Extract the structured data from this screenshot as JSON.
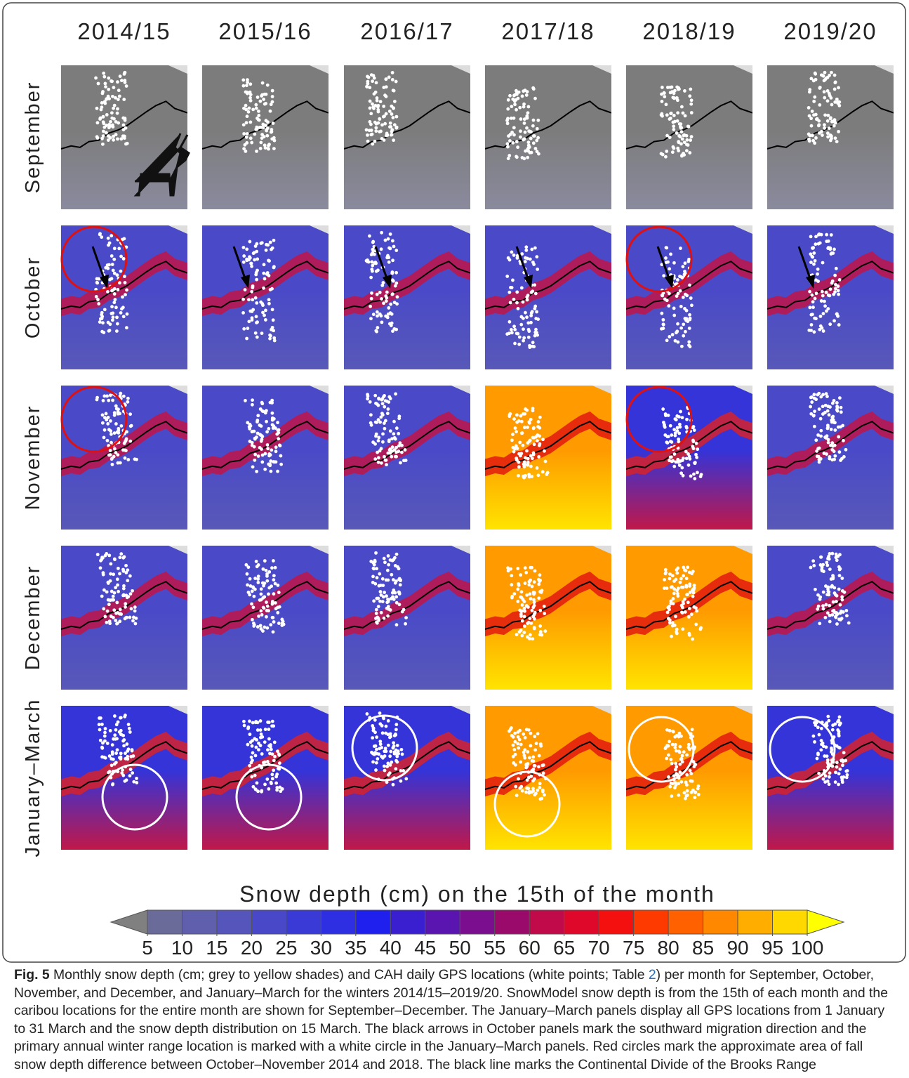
{
  "columns": [
    "2014/15",
    "2015/16",
    "2016/17",
    "2017/18",
    "2018/19",
    "2019/20"
  ],
  "rows": [
    "September",
    "October",
    "November",
    "December",
    "January–March"
  ],
  "colorbar": {
    "title": "Snow depth (cm) on the 15th of the month",
    "ticks": [
      5,
      10,
      15,
      20,
      25,
      30,
      35,
      40,
      45,
      50,
      55,
      60,
      65,
      70,
      75,
      80,
      85,
      90,
      95,
      100
    ],
    "under_color": "#808080",
    "over_color": "#ffff00",
    "colors": [
      "#6b6b9a",
      "#5f5fae",
      "#5555bb",
      "#4848c8",
      "#3a3ad6",
      "#2e2ee2",
      "#1f1fee",
      "#3a1fd0",
      "#5a15b0",
      "#7a0e8e",
      "#9a0a6a",
      "#c00a4a",
      "#e0082a",
      "#f51010",
      "#ff3a00",
      "#ff6000",
      "#ff8800",
      "#ffae00",
      "#ffd800"
    ]
  },
  "caption": {
    "label": "Fig. 5",
    "parts": [
      " Monthly snow depth (cm; grey to yellow shades) and CAH daily GPS locations (white points; Table ",
      "2",
      ") per month for September, October, November, and December, and January–March for the winters 2014/15–2019/20. SnowModel snow depth is from the 15th of each month and the caribou locations for the entire month are shown for September–December. The January–March panels display all GPS locations from 1 January to 31 March and the snow depth distribution on 15 March. The black arrows in October panels mark the southward migration direction and the primary annual winter range location is marked with a white circle in the January–March panels. Red circles mark the approximate area of fall snow depth difference between October–November 2014 and 2018. The black line marks the Continental Divide of the Brooks Range"
    ]
  }
}
